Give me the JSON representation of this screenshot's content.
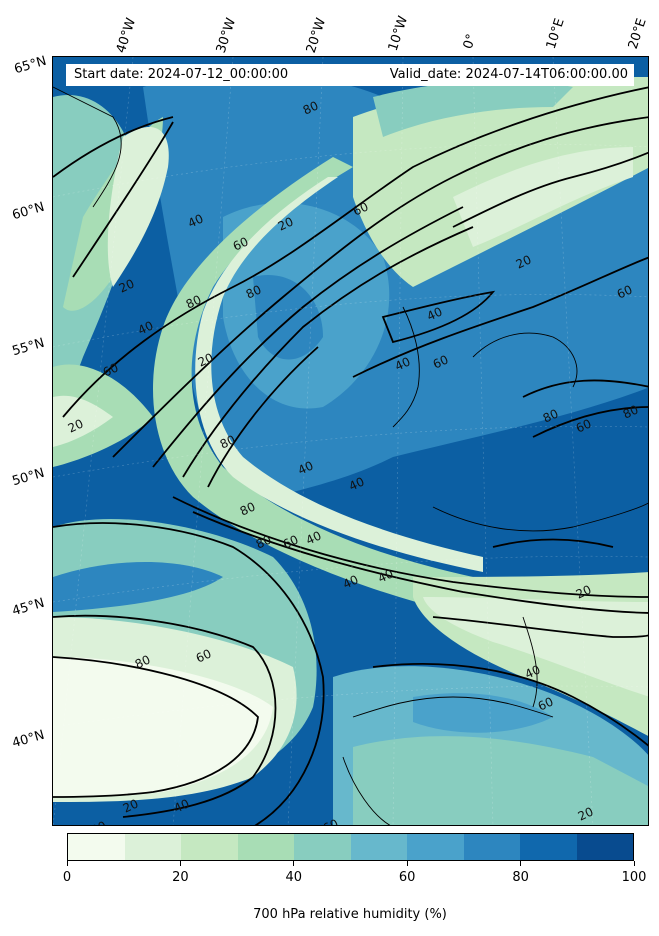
{
  "header": {
    "start_date": "Start date: 2024-07-12_00:00:00",
    "valid_date": "Valid_date: 2024-07-14T06:00:00.00"
  },
  "longitude_labels": [
    "40°W",
    "30°W",
    "20°W",
    "10°W",
    "0°",
    "10°E",
    "20°E"
  ],
  "latitude_labels": [
    "65°N",
    "60°N",
    "55°N",
    "50°N",
    "45°N",
    "40°N"
  ],
  "contour_labels": [
    "80",
    "20",
    "60",
    "40",
    "20",
    "80",
    "60",
    "80",
    "20",
    "40",
    "60",
    "20",
    "80",
    "40",
    "40",
    "60",
    "80",
    "40",
    "80",
    "80",
    "60",
    "40",
    "40",
    "20",
    "40",
    "60",
    "80",
    "60",
    "40",
    "60",
    "20",
    "80",
    "20",
    "40",
    "80",
    "60",
    "20",
    "60",
    "40"
  ],
  "colorbar": {
    "title": "700 hPa relative humidity (%)",
    "tick_labels": [
      "0",
      "20",
      "40",
      "60",
      "80",
      "100"
    ],
    "colors": [
      "#f3fbee",
      "#dcf1d9",
      "#c5e8c1",
      "#a8ddb5",
      "#88cdbf",
      "#67b8cc",
      "#4aa2cb",
      "#2d86bf",
      "#1068ad",
      "#084b8f"
    ]
  }
}
